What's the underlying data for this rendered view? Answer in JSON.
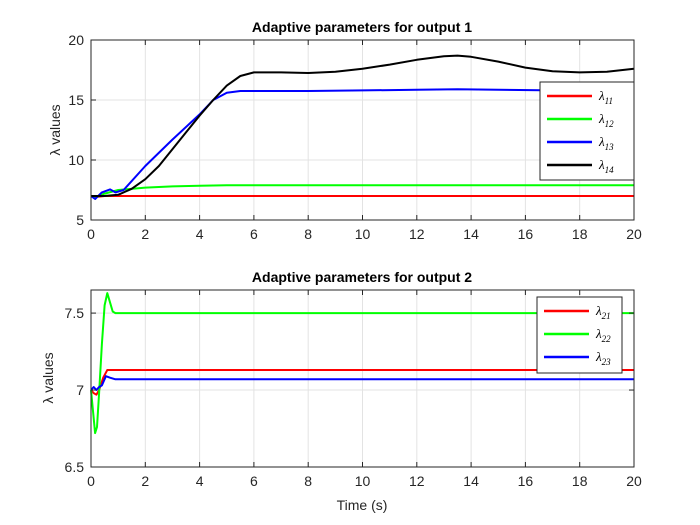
{
  "chart_data": [
    {
      "type": "line",
      "title": "Adaptive parameters for output 1",
      "xlabel": "",
      "ylabel": "λ values",
      "xlim": [
        0,
        20
      ],
      "ylim": [
        5,
        20
      ],
      "xticks": [
        0,
        2,
        4,
        6,
        8,
        10,
        12,
        14,
        16,
        18,
        20
      ],
      "yticks": [
        5,
        10,
        15,
        20
      ],
      "grid": true,
      "legend_position": "right",
      "series": [
        {
          "name": "λ11",
          "symbol": "λ",
          "sub": "11",
          "color": "#ff0000",
          "x": [
            0,
            0.1,
            0.5,
            1,
            5,
            10,
            15,
            20
          ],
          "y": [
            7.0,
            6.9,
            7.0,
            7.0,
            7.0,
            7.0,
            7.0,
            7.0
          ]
        },
        {
          "name": "λ12",
          "symbol": "λ",
          "sub": "12",
          "color": "#00ff00",
          "x": [
            0,
            0.2,
            0.5,
            1,
            2,
            3,
            4,
            5,
            6,
            10,
            15,
            20
          ],
          "y": [
            7.0,
            6.9,
            7.2,
            7.5,
            7.7,
            7.8,
            7.85,
            7.9,
            7.9,
            7.9,
            7.9,
            7.9
          ]
        },
        {
          "name": "λ13",
          "symbol": "λ",
          "sub": "13",
          "color": "#0000ff",
          "x": [
            0,
            0.15,
            0.4,
            0.7,
            0.9,
            1.2,
            2,
            3,
            4,
            4.5,
            5,
            5.5,
            6,
            8,
            10,
            12,
            13.5,
            15,
            17,
            19,
            20
          ],
          "y": [
            7.0,
            6.75,
            7.3,
            7.55,
            7.3,
            7.5,
            9.5,
            11.7,
            13.8,
            15.0,
            15.6,
            15.75,
            15.75,
            15.75,
            15.8,
            15.85,
            15.9,
            15.85,
            15.8,
            15.75,
            15.75
          ]
        },
        {
          "name": "λ14",
          "symbol": "λ",
          "sub": "14",
          "color": "#000000",
          "x": [
            0,
            0.5,
            1,
            1.5,
            2,
            2.5,
            3,
            3.5,
            4,
            4.5,
            5,
            5.5,
            6,
            7,
            8,
            9,
            10,
            11,
            12,
            13,
            13.5,
            14,
            15,
            16,
            17,
            18,
            19,
            20
          ],
          "y": [
            7.0,
            7.0,
            7.1,
            7.6,
            8.4,
            9.5,
            10.9,
            12.3,
            13.7,
            15.0,
            16.2,
            17.0,
            17.3,
            17.3,
            17.25,
            17.35,
            17.6,
            17.95,
            18.35,
            18.65,
            18.7,
            18.6,
            18.2,
            17.7,
            17.4,
            17.3,
            17.35,
            17.6
          ]
        }
      ]
    },
    {
      "type": "line",
      "title": "Adaptive parameters for output 2",
      "xlabel": "Time (s)",
      "ylabel": "λ values",
      "xlim": [
        0,
        20
      ],
      "ylim": [
        6.5,
        7.65
      ],
      "xticks": [
        0,
        2,
        4,
        6,
        8,
        10,
        12,
        14,
        16,
        18,
        20
      ],
      "yticks": [
        6.5,
        7,
        7.5
      ],
      "grid": true,
      "legend_position": "top-right",
      "series": [
        {
          "name": "λ21",
          "symbol": "λ",
          "sub": "21",
          "color": "#ff0000",
          "x": [
            0,
            0.1,
            0.2,
            0.3,
            0.45,
            0.6,
            0.8,
            1,
            5,
            10,
            15,
            20
          ],
          "y": [
            7.0,
            6.98,
            6.97,
            7.0,
            7.08,
            7.13,
            7.13,
            7.13,
            7.13,
            7.13,
            7.13,
            7.13
          ]
        },
        {
          "name": "λ22",
          "symbol": "λ",
          "sub": "22",
          "color": "#00ff00",
          "x": [
            0,
            0.08,
            0.15,
            0.22,
            0.3,
            0.4,
            0.5,
            0.6,
            0.7,
            0.8,
            0.9,
            1.1,
            5,
            10,
            15,
            20
          ],
          "y": [
            7.0,
            6.85,
            6.72,
            6.76,
            6.98,
            7.3,
            7.55,
            7.63,
            7.57,
            7.51,
            7.5,
            7.5,
            7.5,
            7.5,
            7.5,
            7.5
          ]
        },
        {
          "name": "λ23",
          "symbol": "λ",
          "sub": "23",
          "color": "#0000ff",
          "x": [
            0,
            0.1,
            0.2,
            0.3,
            0.4,
            0.55,
            0.7,
            0.9,
            1.2,
            5,
            10,
            15,
            20
          ],
          "y": [
            7.0,
            7.02,
            7.0,
            7.02,
            7.03,
            7.09,
            7.08,
            7.07,
            7.07,
            7.07,
            7.07,
            7.07,
            7.07
          ]
        }
      ]
    }
  ]
}
